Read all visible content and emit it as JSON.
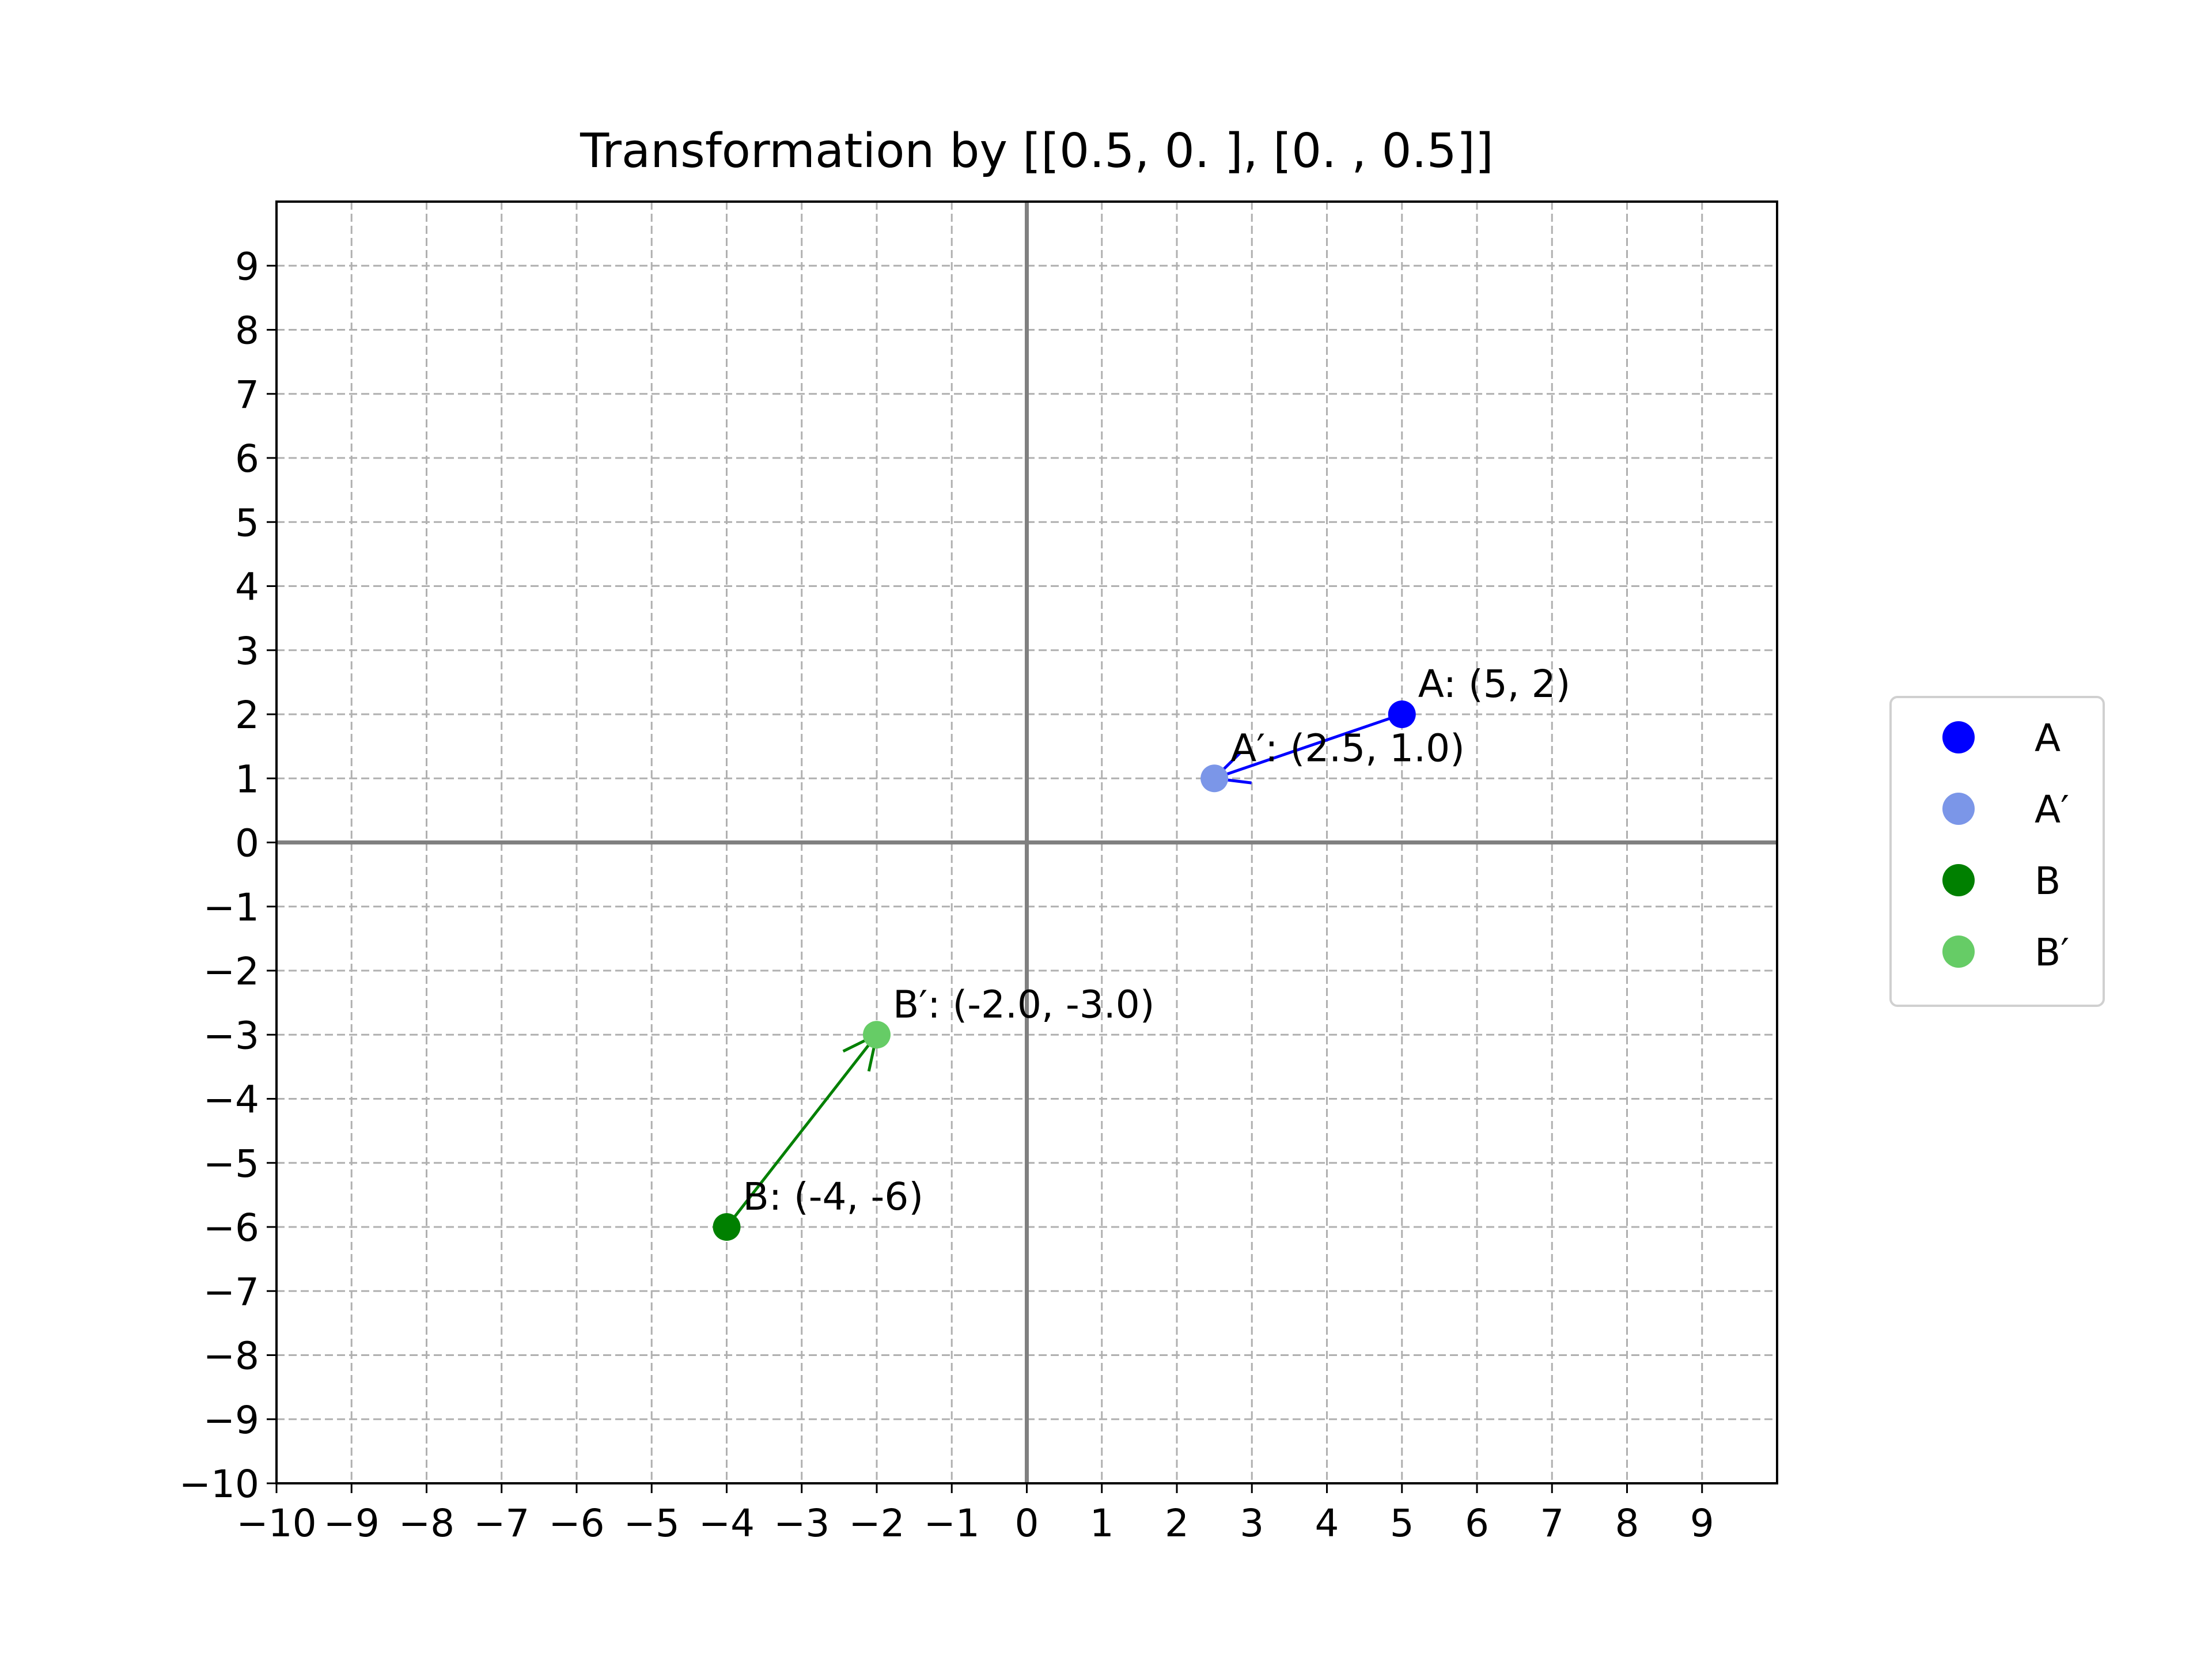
{
  "chart_data": {
    "type": "scatter",
    "title": "Transformation by [[0.5, 0. ],  [0. , 0.5]]",
    "xlabel": "",
    "ylabel": "",
    "xlim": [
      -10,
      10
    ],
    "ylim": [
      -10,
      10
    ],
    "xticks": [
      -10,
      -9,
      -8,
      -7,
      -6,
      -5,
      -4,
      -3,
      -2,
      -1,
      0,
      1,
      2,
      3,
      4,
      5,
      6,
      7,
      8,
      9
    ],
    "yticks": [
      -10,
      -9,
      -8,
      -7,
      -6,
      -5,
      -4,
      -3,
      -2,
      -1,
      0,
      1,
      2,
      3,
      4,
      5,
      6,
      7,
      8,
      9
    ],
    "xtick_labels": [
      "−10",
      "−9",
      "−8",
      "−7",
      "−6",
      "−5",
      "−4",
      "−3",
      "−2",
      "−1",
      "0",
      "1",
      "2",
      "3",
      "4",
      "5",
      "6",
      "7",
      "8",
      "9"
    ],
    "ytick_labels": [
      "−10",
      "−9",
      "−8",
      "−7",
      "−6",
      "−5",
      "−4",
      "−3",
      "−2",
      "−1",
      "0",
      "1",
      "2",
      "3",
      "4",
      "5",
      "6",
      "7",
      "8",
      "9"
    ],
    "grid": true,
    "grid_style": "dashed",
    "axes_lines_at_zero": true,
    "legend_position": "outside-right",
    "series": [
      {
        "name": "A",
        "x": 5,
        "y": 2,
        "color": "#0000ff",
        "annotation": "A: (5, 2)"
      },
      {
        "name": "A′",
        "x": 2.5,
        "y": 1.0,
        "color": "#7b96e8",
        "annotation": "A′: (2.5, 1.0)"
      },
      {
        "name": "B",
        "x": -4,
        "y": -6,
        "color": "#008000",
        "annotation": "B: (-4, -6)"
      },
      {
        "name": "B′",
        "x": -2.0,
        "y": -3.0,
        "color": "#66cc66",
        "annotation": "B′: (-2.0, -3.0)"
      }
    ],
    "arrows": [
      {
        "from": [
          5,
          2
        ],
        "to": [
          2.5,
          1.0
        ],
        "color": "#0000ff"
      },
      {
        "from": [
          -4,
          -6
        ],
        "to": [
          -2.0,
          -3.0
        ],
        "color": "#008000"
      }
    ]
  }
}
